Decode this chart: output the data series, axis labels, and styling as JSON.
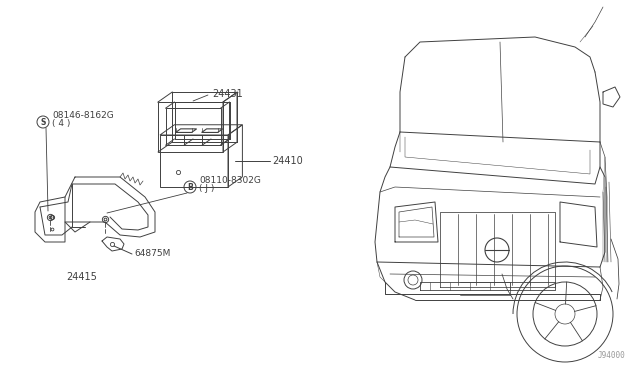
{
  "background_color": "#ffffff",
  "line_color": "#404040",
  "fig_width": 6.4,
  "fig_height": 3.72,
  "dpi": 100,
  "watermark": "J94000",
  "parts": {
    "battery_tray_label": "24431",
    "battery_bracket_label": "24415",
    "battery_label": "24410",
    "bolt1_label": "08146-8162G",
    "bolt1_label2": "( 4 )",
    "bolt2_label": "08110-8302G",
    "bolt2_label2": "( J )",
    "clamp_label": "64875M"
  },
  "symbol_s": "S",
  "symbol_b": "B"
}
